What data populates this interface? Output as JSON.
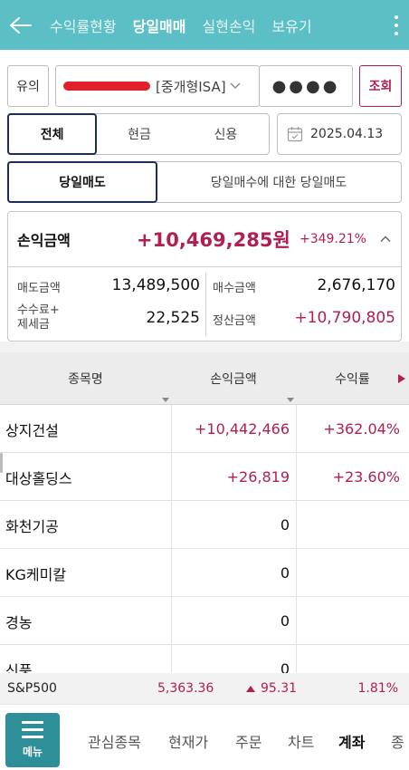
{
  "header": {
    "back_icon": "arrow-left-icon",
    "tabs": [
      {
        "label": "수익률현황",
        "active": false
      },
      {
        "label": "당일매매",
        "active": true
      },
      {
        "label": "실현손익",
        "active": false
      },
      {
        "label": "보유기",
        "active": false
      }
    ],
    "more_icon": "kebab-menu-icon"
  },
  "account": {
    "type_button": "유의",
    "account_type": "[중개형ISA]",
    "password_mask": "●●●●",
    "search_button": "조회"
  },
  "filter": {
    "options": [
      "전체",
      "현금",
      "신용"
    ],
    "selected": "전체",
    "date": "2025.04.13"
  },
  "sell_type": {
    "options": [
      "당일매도",
      "당일매수에 대한 당일매도"
    ],
    "selected": "당일매도"
  },
  "summary": {
    "pl_label": "손익금액",
    "pl_amount": "+10,469,285원",
    "pl_rate": "+349.21%",
    "sell_label": "매도금액",
    "sell_value": "13,489,500",
    "buy_label": "매수금액",
    "buy_value": "2,676,170",
    "fee_label_1": "수수료+",
    "fee_label_2": "제세금",
    "fee_value": "22,525",
    "settle_label": "정산금액",
    "settle_value": "+10,790,805"
  },
  "table": {
    "columns": [
      "종목명",
      "손익금액",
      "수익률"
    ],
    "rows": [
      {
        "name": "상지건설",
        "amount": "+10,442,466",
        "rate": "+362.04%"
      },
      {
        "name": "대상홀딩스",
        "amount": "+26,819",
        "rate": "+23.60%"
      },
      {
        "name": "화천기공",
        "amount": "0",
        "rate": ""
      },
      {
        "name": "KG케미칼",
        "amount": "0",
        "rate": ""
      },
      {
        "name": "경농",
        "amount": "0",
        "rate": ""
      },
      {
        "name": "신풍",
        "amount": "0",
        "rate": ""
      }
    ]
  },
  "ticker": {
    "name": "S&P500",
    "value": "5,363.36",
    "change": "95.31",
    "percent": "1.81%"
  },
  "bottom_nav": {
    "menu_label": "메뉴",
    "items": [
      "관심종목",
      "현재가",
      "주문",
      "차트",
      "계좌",
      "종"
    ],
    "active": "계좌"
  },
  "colors": {
    "header": "#5bbfc5",
    "accent_red": "#b01f4d",
    "selected_border": "#1c2d5e",
    "menu_button": "#2e8f99"
  }
}
